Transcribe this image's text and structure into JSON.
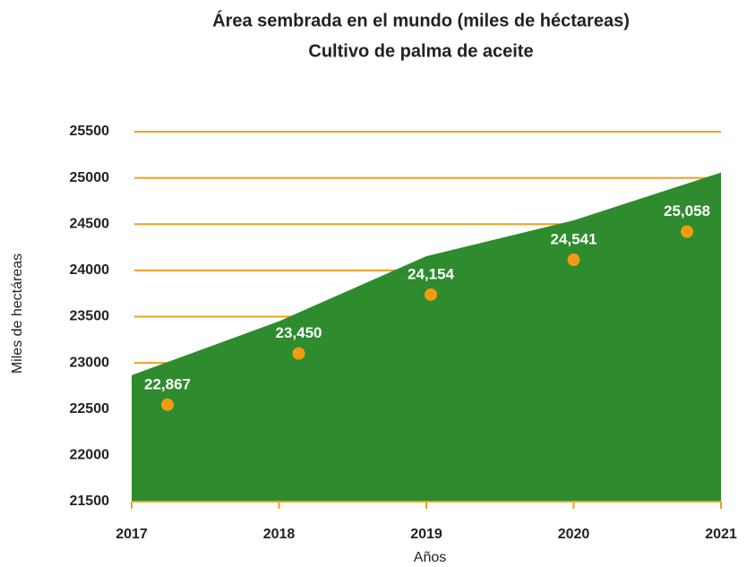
{
  "chart_data": {
    "type": "area",
    "title": "Área sembrada en el mundo (miles de héctareas)",
    "subtitle": "Cultivo de palma de aceite",
    "x_label": "Años",
    "y_label": "Miles de hectáreas",
    "x": [
      2017,
      2018,
      2019,
      2020,
      2021
    ],
    "xlim": [
      2017,
      2021
    ],
    "xticks": [
      2017,
      2018,
      2019,
      2020,
      2021
    ],
    "values": [
      22867,
      23450,
      24154,
      24541,
      25058
    ],
    "value_labels": [
      "22,867",
      "23,450",
      "24,154",
      "24,541",
      "25,058"
    ],
    "color": "#2e8b2e",
    "marker_color": "#f39c12",
    "grid_color": "#f0a01e",
    "ylim": [
      21500,
      25500
    ],
    "yticks": [
      21500,
      22000,
      22500,
      23000,
      23500,
      24000,
      24500,
      25000,
      25500
    ],
    "grid": true
  }
}
